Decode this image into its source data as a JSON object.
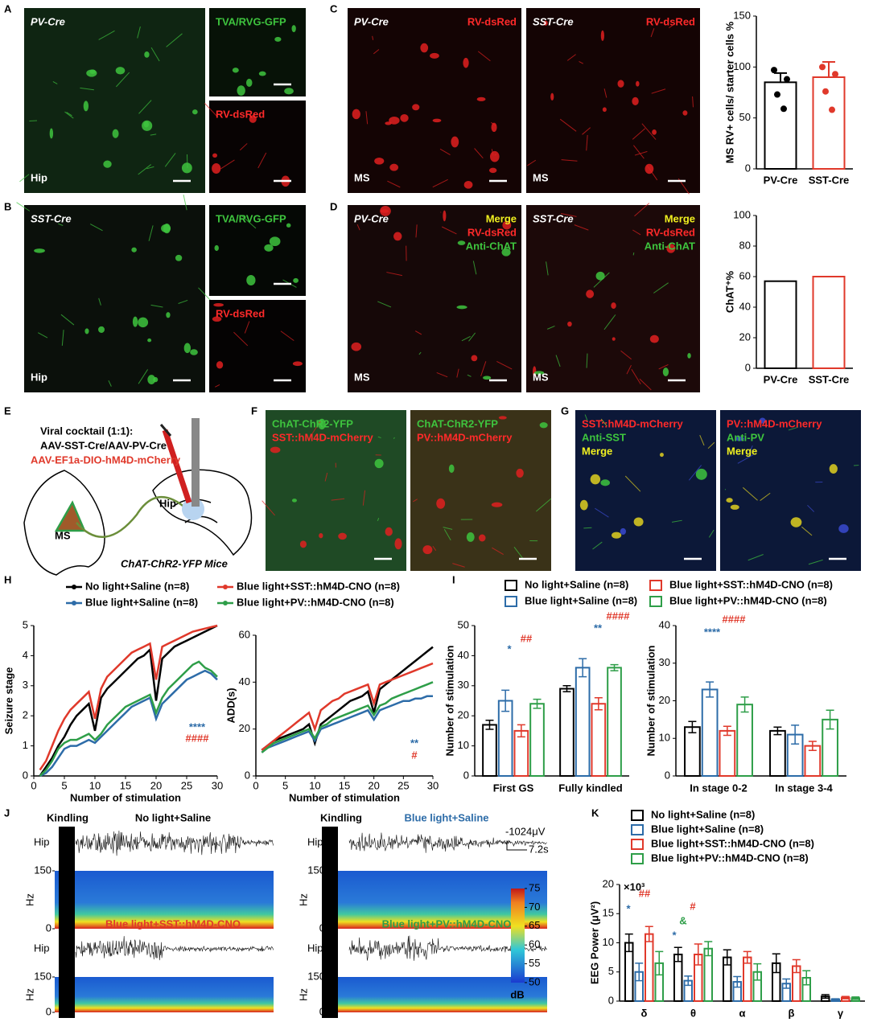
{
  "panel_labels": [
    "A",
    "B",
    "C",
    "D",
    "E",
    "F",
    "G",
    "H",
    "I",
    "J",
    "K"
  ],
  "images": [
    {
      "labels": [
        {
          "text": "PV-Cre",
          "color": "#ffffff",
          "italic": true
        },
        {
          "text": "Hip",
          "color": "#ffffff"
        }
      ]
    },
    {
      "labels": [
        {
          "text": "TVA/RVG-GFP",
          "color": "#3ec43e"
        }
      ]
    },
    {
      "labels": [
        {
          "text": "RV-dsRed",
          "color": "#ff2a2a"
        }
      ]
    },
    {
      "labels": [
        {
          "text": "SST-Cre",
          "color": "#ffffff",
          "italic": true
        },
        {
          "text": "Hip",
          "color": "#ffffff"
        }
      ]
    },
    {
      "labels": [
        {
          "text": "TVA/RVG-GFP",
          "color": "#3ec43e"
        }
      ]
    },
    {
      "labels": [
        {
          "text": "RV-dsRed",
          "color": "#ff2a2a"
        }
      ]
    },
    {
      "labels": [
        {
          "text": "PV-Cre",
          "color": "#ffffff",
          "italic": true
        },
        {
          "text": "RV-dsRed",
          "color": "#ff2a2a"
        },
        {
          "text": "MS",
          "color": "#ffffff"
        }
      ]
    },
    {
      "labels": [
        {
          "text": "SST-Cre",
          "color": "#ffffff",
          "italic": true
        },
        {
          "text": "RV-dsRed",
          "color": "#ff2a2a"
        },
        {
          "text": "MS",
          "color": "#ffffff"
        }
      ]
    },
    {
      "labels": [
        {
          "text": "PV-Cre",
          "color": "#ffffff",
          "italic": true
        },
        {
          "text": "Merge",
          "color": "#f0f020"
        },
        {
          "text": "RV-dsRed",
          "color": "#ff2a2a"
        },
        {
          "text": "Anti-ChAT",
          "color": "#3ec43e"
        },
        {
          "text": "MS",
          "color": "#ffffff"
        }
      ]
    },
    {
      "labels": [
        {
          "text": "SST-Cre",
          "color": "#ffffff",
          "italic": true
        },
        {
          "text": "Merge",
          "color": "#f0f020"
        },
        {
          "text": "RV-dsRed",
          "color": "#ff2a2a"
        },
        {
          "text": "Anti-ChAT",
          "color": "#3ec43e"
        },
        {
          "text": "MS",
          "color": "#ffffff"
        }
      ]
    },
    {
      "labels": [
        {
          "text": "ChAT-ChR2-YFP",
          "color": "#3ec43e"
        },
        {
          "text": "SST::hM4D-mCherry",
          "color": "#ff2a2a"
        }
      ]
    },
    {
      "labels": [
        {
          "text": "ChAT-ChR2-YFP",
          "color": "#3ec43e"
        },
        {
          "text": "PV::hM4D-mCherry",
          "color": "#ff2a2a"
        }
      ]
    },
    {
      "labels": [
        {
          "text": "SST::hM4D-mCherry",
          "color": "#ff2a2a"
        },
        {
          "text": "Anti-SST",
          "color": "#3ec43e"
        },
        {
          "text": "Merge",
          "color": "#f0f020"
        }
      ]
    },
    {
      "labels": [
        {
          "text": "PV::hM4D-mCherry",
          "color": "#ff2a2a"
        },
        {
          "text": "Anti-PV",
          "color": "#3ec43e"
        },
        {
          "text": "Merge",
          "color": "#f0f020"
        }
      ]
    }
  ],
  "diagram": {
    "texts": [
      "Viral cocktail (1:1):",
      "AAV-SST-Cre/AAV-PV-Cre",
      "AAV-EF1a-DIO-hM4D-mCherry",
      "MS",
      "Hip",
      "ChAT-ChR2-YFP Mice"
    ]
  },
  "eeg": {
    "kindling": "Kindling",
    "titles": [
      {
        "text": "No light+Saline",
        "color": "#000000"
      },
      {
        "text": "Blue light+Saline",
        "color": "#2d6ca8"
      },
      {
        "text": "Blue light+SST::hM4D-CNO",
        "color": "#e0392b"
      },
      {
        "text": "Blue light+PV::hM4D-CNO",
        "color": "#2e9e48"
      }
    ],
    "trace_label": "Hip",
    "freq_label": "Hz",
    "freq_ticks": [
      0,
      150
    ],
    "scale_v": "-1024μV",
    "scale_t": "7.2s",
    "colorbar": {
      "range": [
        50,
        75
      ],
      "ticks": [
        50,
        55,
        60,
        65,
        70,
        75
      ],
      "unit": "dB"
    }
  },
  "chart_data": [
    {
      "type": "bar",
      "categories": [
        "PV-Cre",
        "SST-Cre"
      ],
      "values": [
        85,
        90
      ],
      "errors": [
        9,
        15
      ],
      "colors": [
        "#000000",
        "#e0392b"
      ],
      "points": [
        [
          97,
          88,
          73,
          59
        ],
        [
          100,
          93,
          76,
          58
        ]
      ],
      "ylabel": "MS RV+ cells/ starter cells %",
      "ylim": [
        0,
        150
      ],
      "yticks": [
        0,
        50,
        100,
        150
      ]
    },
    {
      "type": "bar",
      "categories": [
        "PV-Cre",
        "SST-Cre"
      ],
      "values": [
        57,
        60
      ],
      "colors": [
        "#000000",
        "#e0392b"
      ],
      "ylabel": "ChAT⁺%",
      "ylim": [
        0,
        100
      ],
      "yticks": [
        0,
        20,
        40,
        60,
        80,
        100
      ]
    },
    {
      "type": "line",
      "x": [
        1,
        2,
        3,
        4,
        5,
        6,
        7,
        8,
        9,
        10,
        11,
        12,
        13,
        14,
        15,
        16,
        17,
        18,
        19,
        20,
        21,
        22,
        23,
        24,
        25,
        26,
        27,
        28,
        29,
        30
      ],
      "series": [
        {
          "name": "No light+Saline (n=8)",
          "color": "#000000",
          "values": [
            0,
            0.3,
            0.6,
            1,
            1.3,
            1.7,
            2,
            2.2,
            2.4,
            1.5,
            2.6,
            2.9,
            3.1,
            3.3,
            3.5,
            3.7,
            3.9,
            4.0,
            4.2,
            2.5,
            3.9,
            4.1,
            4.3,
            4.4,
            4.5,
            4.6,
            4.7,
            4.8,
            4.9,
            5
          ]
        },
        {
          "name": "Blue light+Saline (n=8)",
          "color": "#2d6ca8",
          "values": [
            0,
            0.1,
            0.3,
            0.6,
            0.9,
            1.0,
            1.0,
            1.1,
            1.2,
            1.1,
            1.3,
            1.5,
            1.7,
            1.9,
            2.1,
            2.3,
            2.4,
            2.5,
            2.6,
            1.9,
            2.4,
            2.6,
            2.8,
            3.0,
            3.2,
            3.3,
            3.4,
            3.5,
            3.4,
            3.2
          ]
        },
        {
          "name": "Blue light+SST::hM4D-CNO (n=8)",
          "color": "#e0392b",
          "values": [
            0.2,
            0.5,
            1,
            1.5,
            1.9,
            2.2,
            2.4,
            2.6,
            2.8,
            1.9,
            2.9,
            3.3,
            3.5,
            3.7,
            3.9,
            4.1,
            4.2,
            4.3,
            4.4,
            3.2,
            4.3,
            4.4,
            4.5,
            4.6,
            4.7,
            4.8,
            4.85,
            4.9,
            4.95,
            5
          ]
        },
        {
          "name": "Blue light+PV::hM4D-CNO (n=8)",
          "color": "#2e9e48",
          "values": [
            0,
            0.2,
            0.5,
            0.9,
            1.1,
            1.2,
            1.2,
            1.3,
            1.4,
            1.2,
            1.4,
            1.7,
            1.9,
            2.1,
            2.3,
            2.4,
            2.5,
            2.6,
            2.7,
            2.1,
            2.6,
            2.9,
            3.1,
            3.3,
            3.5,
            3.7,
            3.8,
            3.6,
            3.5,
            3.3
          ]
        }
      ],
      "ylabel": "Seizure stage",
      "xlabel": "Number of stimulation",
      "xlim": [
        0,
        30
      ],
      "xticks": [
        0,
        5,
        10,
        15,
        20,
        25,
        30
      ],
      "ylim": [
        0,
        5
      ],
      "yticks": [
        0,
        1,
        2,
        3,
        4,
        5
      ],
      "annotations": [
        {
          "text": "****",
          "color": "#2d6ca8"
        },
        {
          "text": "####",
          "color": "#e0392b"
        }
      ]
    },
    {
      "type": "line",
      "x": [
        1,
        2,
        3,
        4,
        5,
        6,
        7,
        8,
        9,
        10,
        11,
        12,
        13,
        14,
        15,
        16,
        17,
        18,
        19,
        20,
        21,
        22,
        23,
        24,
        25,
        26,
        27,
        28,
        29,
        30
      ],
      "series": [
        {
          "color": "#000000",
          "values": [
            11,
            13,
            15,
            16,
            17,
            18,
            19,
            20,
            22,
            14,
            22,
            24,
            26,
            28,
            30,
            32,
            33,
            34,
            36,
            27,
            37,
            39,
            41,
            43,
            45,
            47,
            49,
            51,
            53,
            55
          ]
        },
        {
          "color": "#2d6ca8",
          "values": [
            10,
            12,
            13,
            14,
            15,
            16,
            17,
            18,
            19,
            15,
            20,
            21,
            22,
            23,
            24,
            25,
            26,
            27,
            28,
            24,
            28,
            29,
            30,
            31,
            32,
            32,
            33,
            33,
            34,
            34
          ]
        },
        {
          "color": "#e0392b",
          "values": [
            11,
            13,
            15,
            17,
            19,
            21,
            23,
            25,
            27,
            20,
            28,
            30,
            32,
            33,
            35,
            36,
            37,
            38,
            39,
            31,
            39,
            40,
            41,
            42,
            43,
            44,
            45,
            46,
            47,
            48
          ]
        },
        {
          "color": "#2e9e48",
          "values": [
            10,
            12,
            14,
            15,
            16,
            17,
            18,
            19,
            20,
            16,
            21,
            22,
            24,
            25,
            26,
            27,
            28,
            29,
            30,
            26,
            30,
            31,
            33,
            34,
            35,
            36,
            37,
            38,
            39,
            40
          ]
        }
      ],
      "ylabel": "ADD(s)",
      "xlabel": "Number of stimulation",
      "xlim": [
        0,
        30
      ],
      "xticks": [
        0,
        5,
        10,
        15,
        20,
        25,
        30
      ],
      "ylim": [
        0,
        60
      ],
      "yticks": [
        0,
        20,
        40,
        60
      ],
      "annotations": [
        {
          "text": "**",
          "color": "#2d6ca8"
        },
        {
          "text": "#",
          "color": "#e0392b"
        }
      ]
    },
    {
      "type": "grouped_bar",
      "categories": [
        "First GS",
        "Fully kindled"
      ],
      "series": [
        {
          "name": "No light+Saline (n=8)",
          "color": "#000000",
          "values": [
            17,
            29
          ],
          "errors": [
            1.5,
            1
          ]
        },
        {
          "name": "Blue light+Saline (n=8)",
          "color": "#2d6ca8",
          "values": [
            25,
            36
          ],
          "errors": [
            3.5,
            3
          ]
        },
        {
          "name": "Blue light+SST::hM4D-CNO (n=8)",
          "color": "#e0392b",
          "values": [
            15,
            24
          ],
          "errors": [
            2,
            2
          ]
        },
        {
          "name": "Blue light+PV::hM4D-CNO (n=8)",
          "color": "#2e9e48",
          "values": [
            24,
            36
          ],
          "errors": [
            1.5,
            1
          ]
        }
      ],
      "ylabel": "Number of stimulation",
      "ylim": [
        0,
        50
      ],
      "yticks": [
        0,
        10,
        20,
        30,
        40,
        50
      ],
      "annotations": [
        {
          "text": "*",
          "color": "#2d6ca8"
        },
        {
          "text": "##",
          "color": "#e0392b"
        },
        {
          "text": "**",
          "color": "#2d6ca8"
        },
        {
          "text": "####",
          "color": "#e0392b"
        }
      ]
    },
    {
      "type": "grouped_bar",
      "categories": [
        "In stage 0-2",
        "In stage 3-4"
      ],
      "series": [
        {
          "color": "#000000",
          "values": [
            13,
            12
          ],
          "errors": [
            1.5,
            1
          ]
        },
        {
          "color": "#2d6ca8",
          "values": [
            23,
            11
          ],
          "errors": [
            2,
            2.5
          ]
        },
        {
          "color": "#e0392b",
          "values": [
            12,
            8
          ],
          "errors": [
            1.2,
            1.2
          ]
        },
        {
          "color": "#2e9e48",
          "values": [
            19,
            15
          ],
          "errors": [
            2,
            2.5
          ]
        }
      ],
      "ylabel": "Number of stimulation",
      "ylim": [
        0,
        40
      ],
      "yticks": [
        0,
        10,
        20,
        30,
        40
      ],
      "annotations": [
        {
          "text": "****",
          "color": "#2d6ca8"
        },
        {
          "text": "####",
          "color": "#e0392b"
        }
      ]
    },
    {
      "type": "grouped_bar",
      "categories": [
        "δ",
        "θ",
        "α",
        "β",
        "γ"
      ],
      "series": [
        {
          "name": "No light+Saline (n=8)",
          "color": "#000000",
          "values": [
            10,
            8,
            7.5,
            6.5,
            0.8
          ],
          "errors": [
            1.5,
            1.2,
            1.3,
            1.6,
            0.3
          ]
        },
        {
          "name": "Blue light+Saline (n=8)",
          "color": "#2d6ca8",
          "values": [
            5,
            3.5,
            3.3,
            3,
            0.3
          ],
          "errors": [
            1.5,
            0.8,
            0.9,
            0.8,
            0.1
          ]
        },
        {
          "name": "Blue light+SST::hM4D-CNO (n=8)",
          "color": "#e0392b",
          "values": [
            11.5,
            8,
            7.5,
            6,
            0.6
          ],
          "errors": [
            1.3,
            1.8,
            1,
            1.1,
            0.2
          ]
        },
        {
          "name": "Blue light+PV::hM4D-CNO (n=8)",
          "color": "#2e9e48",
          "values": [
            6.5,
            9,
            5,
            4,
            0.5
          ],
          "errors": [
            2,
            1.2,
            1.4,
            1.2,
            0.2
          ]
        }
      ],
      "ylabel": "EEG Power (μV²)",
      "multiplier": "×10³",
      "ylim": [
        0,
        20
      ],
      "yticks": [
        0,
        5,
        10,
        15,
        20
      ],
      "annotations": [
        {
          "text": "*",
          "color": "#2d6ca8"
        },
        {
          "text": "##",
          "color": "#e0392b"
        },
        {
          "text": "*",
          "color": "#2d6ca8"
        },
        {
          "text": "&",
          "color": "#2e9e48"
        },
        {
          "text": "#",
          "color": "#e0392b"
        }
      ]
    }
  ]
}
